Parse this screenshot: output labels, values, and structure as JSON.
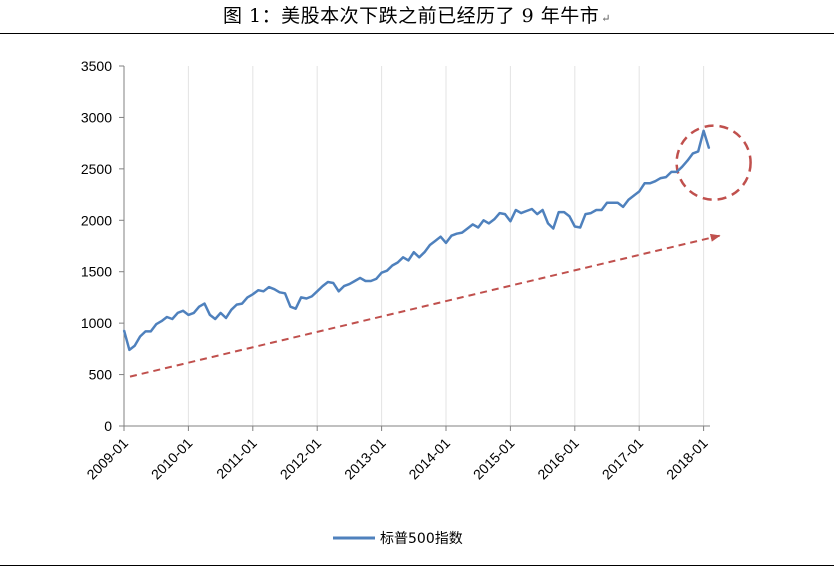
{
  "caption": {
    "text": "图 1：美股本次下跌之前已经历了 9 年牛市",
    "return_mark": "↵"
  },
  "chart_data": {
    "type": "line",
    "title": "",
    "xlabel": "",
    "ylabel": "",
    "ylim": [
      0,
      3500
    ],
    "y_ticks": [
      "0",
      "500",
      "1000",
      "1500",
      "2000",
      "2500",
      "3000",
      "3500"
    ],
    "x_tick_labels": [
      "2009-01",
      "2010-01",
      "2011-01",
      "2012-01",
      "2013-01",
      "2014-01",
      "2015-01",
      "2016-01",
      "2017-01",
      "2018-01"
    ],
    "grid": "vertical gridlines",
    "legend": {
      "position": "bottom",
      "entries": [
        "标普500指数"
      ]
    },
    "series": [
      {
        "name": "标普500指数",
        "color": "#4f81bd",
        "x": [
          "2009-01",
          "2009-02",
          "2009-03",
          "2009-04",
          "2009-05",
          "2009-06",
          "2009-07",
          "2009-08",
          "2009-09",
          "2009-10",
          "2009-11",
          "2009-12",
          "2010-01",
          "2010-02",
          "2010-03",
          "2010-04",
          "2010-05",
          "2010-06",
          "2010-07",
          "2010-08",
          "2010-09",
          "2010-10",
          "2010-11",
          "2010-12",
          "2011-01",
          "2011-02",
          "2011-03",
          "2011-04",
          "2011-05",
          "2011-06",
          "2011-07",
          "2011-08",
          "2011-09",
          "2011-10",
          "2011-11",
          "2011-12",
          "2012-01",
          "2012-02",
          "2012-03",
          "2012-04",
          "2012-05",
          "2012-06",
          "2012-07",
          "2012-08",
          "2012-09",
          "2012-10",
          "2012-11",
          "2012-12",
          "2013-01",
          "2013-02",
          "2013-03",
          "2013-04",
          "2013-05",
          "2013-06",
          "2013-07",
          "2013-08",
          "2013-09",
          "2013-10",
          "2013-11",
          "2013-12",
          "2014-01",
          "2014-02",
          "2014-03",
          "2014-04",
          "2014-05",
          "2014-06",
          "2014-07",
          "2014-08",
          "2014-09",
          "2014-10",
          "2014-11",
          "2014-12",
          "2015-01",
          "2015-02",
          "2015-03",
          "2015-04",
          "2015-05",
          "2015-06",
          "2015-07",
          "2015-08",
          "2015-09",
          "2015-10",
          "2015-11",
          "2015-12",
          "2016-01",
          "2016-02",
          "2016-03",
          "2016-04",
          "2016-05",
          "2016-06",
          "2016-07",
          "2016-08",
          "2016-09",
          "2016-10",
          "2016-11",
          "2016-12",
          "2017-01",
          "2017-02",
          "2017-03",
          "2017-04",
          "2017-05",
          "2017-06",
          "2017-07",
          "2017-08",
          "2017-09",
          "2017-10",
          "2017-11",
          "2017-12",
          "2018-01",
          "2018-02"
        ],
        "values": [
          930,
          740,
          780,
          870,
          920,
          920,
          990,
          1020,
          1060,
          1040,
          1100,
          1120,
          1080,
          1100,
          1160,
          1190,
          1080,
          1040,
          1100,
          1050,
          1130,
          1180,
          1190,
          1250,
          1280,
          1320,
          1310,
          1350,
          1330,
          1300,
          1290,
          1160,
          1140,
          1250,
          1240,
          1260,
          1310,
          1360,
          1400,
          1390,
          1310,
          1360,
          1380,
          1410,
          1440,
          1410,
          1410,
          1430,
          1490,
          1510,
          1560,
          1590,
          1640,
          1610,
          1690,
          1640,
          1690,
          1760,
          1800,
          1840,
          1780,
          1850,
          1870,
          1880,
          1920,
          1960,
          1930,
          2000,
          1970,
          2010,
          2070,
          2060,
          1990,
          2100,
          2070,
          2090,
          2110,
          2060,
          2100,
          1970,
          1920,
          2080,
          2080,
          2040,
          1940,
          1930,
          2060,
          2070,
          2100,
          2100,
          2170,
          2170,
          2170,
          2130,
          2200,
          2240,
          2280,
          2360,
          2360,
          2380,
          2410,
          2420,
          2470,
          2470,
          2520,
          2580,
          2650,
          2670,
          2870,
          2700
        ]
      }
    ],
    "annotations": [
      {
        "type": "dashed-arrow",
        "color": "#c0504d",
        "from": [
          "2009-01",
          480
        ],
        "to": [
          "2018-01",
          1850
        ]
      },
      {
        "type": "dashed-circle",
        "color": "#c0504d",
        "center": [
          "2018-01",
          2560
        ]
      }
    ]
  }
}
